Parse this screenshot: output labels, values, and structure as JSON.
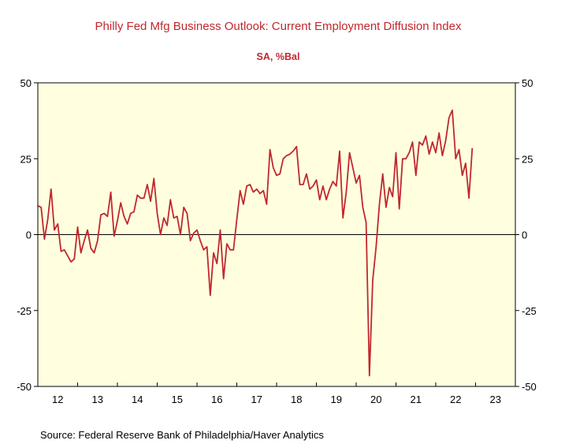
{
  "chart_data": {
    "type": "line",
    "title": "Philly Fed Mfg Business Outlook: Current Employment Diffusion Index",
    "subtitle": "SA, %Bal",
    "source": "Source:  Federal Reserve Bank of Philadelphia/Haver Analytics",
    "xlabel": "",
    "ylabel": "",
    "x_range": [
      2011.5,
      2023.5
    ],
    "ylim": [
      -50,
      50
    ],
    "y_ticks": [
      50,
      25,
      0,
      -25,
      -50
    ],
    "y_tick_labels": [
      "50",
      "25",
      "0",
      "-25",
      "-50"
    ],
    "x_ticks": [
      2012,
      2013,
      2014,
      2015,
      2016,
      2017,
      2018,
      2019,
      2020,
      2021,
      2022,
      2023
    ],
    "x_tick_labels": [
      "12",
      "13",
      "14",
      "15",
      "16",
      "17",
      "18",
      "19",
      "20",
      "21",
      "22",
      "23"
    ],
    "grid": false,
    "zero_line": true,
    "colors": {
      "line": "#c0282d",
      "plot_bg": "#ffffe0",
      "title": "#c0282d"
    },
    "series": [
      {
        "start": "2011-07",
        "frequency": "monthly",
        "values": [
          9.5,
          9,
          -1.5,
          5,
          15,
          1.5,
          3.5,
          -5.5,
          -5,
          -7,
          -9,
          -8,
          2.5,
          -6,
          -2,
          1.5,
          -4.5,
          -6,
          -2,
          6.5,
          7,
          6,
          14,
          -0.5,
          4.5,
          10.5,
          6,
          3.5,
          7,
          7.5,
          13,
          12,
          12,
          16.5,
          11,
          18.5,
          7,
          0,
          5.5,
          3,
          11.5,
          5.5,
          6,
          0,
          9,
          7,
          -2,
          0.5,
          1.5,
          -2,
          -5,
          -4,
          -20,
          -6,
          -9.5,
          1.5,
          -14.5,
          -3,
          -5,
          -5,
          5,
          14.5,
          10,
          16,
          16.5,
          14,
          15,
          13.5,
          14.5,
          10,
          28,
          22,
          19.5,
          20,
          25,
          26,
          26.5,
          27.5,
          29,
          16.5,
          16.5,
          20,
          15,
          16,
          18,
          11.5,
          16,
          11.5,
          15,
          17.5,
          16,
          27.5,
          5.5,
          14,
          27,
          22,
          17,
          19.5,
          9,
          4,
          -46.5,
          -15,
          -4,
          10,
          20,
          9,
          15.5,
          12.5,
          27,
          8.5,
          25,
          25,
          27,
          30.5,
          19.5,
          30.5,
          29.5,
          32.5,
          26.5,
          30.5,
          27,
          33.5,
          26,
          31,
          38.5,
          41,
          25,
          28,
          19.5,
          23.5,
          12,
          28.5
        ]
      }
    ]
  }
}
